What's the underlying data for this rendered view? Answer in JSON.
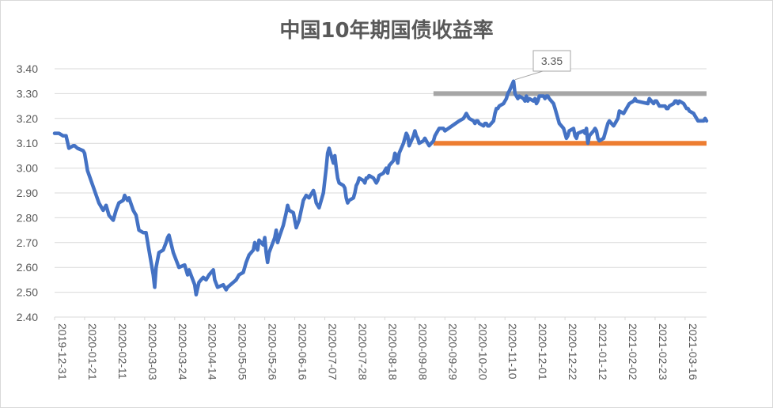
{
  "chart_data": {
    "type": "line",
    "title": "中国10年期国债收益率",
    "xlabel": "",
    "ylabel": "",
    "ylim": [
      2.4,
      3.4
    ],
    "y_ticks": [
      "2.40",
      "2.50",
      "2.60",
      "2.70",
      "2.80",
      "2.90",
      "3.00",
      "3.10",
      "3.20",
      "3.30",
      "3.40"
    ],
    "x_tick_labels": [
      "2019-12-31",
      "2020-01-21",
      "2020-02-11",
      "2020-03-03",
      "2020-03-24",
      "2020-04-14",
      "2020-05-05",
      "2020-05-26",
      "2020-06-16",
      "2020-07-07",
      "2020-07-28",
      "2020-08-18",
      "2020-09-08",
      "2020-09-29",
      "2020-10-20",
      "2020-11-10",
      "2020-12-01",
      "2020-12-22",
      "2021-01-12",
      "2021-02-02",
      "2021-02-23",
      "2021-03-16"
    ],
    "x_range": [
      "2019-12-31",
      "2021-03-31"
    ],
    "grid": true,
    "legend": "none",
    "series": [
      {
        "color": "#4472c4",
        "points": [
          [
            "2019-12-31",
            3.14
          ],
          [
            "2020-01-02",
            3.14
          ],
          [
            "2020-01-03",
            3.14
          ],
          [
            "2020-01-06",
            3.13
          ],
          [
            "2020-01-08",
            3.13
          ],
          [
            "2020-01-10",
            3.08
          ],
          [
            "2020-01-13",
            3.09
          ],
          [
            "2020-01-14",
            3.09
          ],
          [
            "2020-01-16",
            3.08
          ],
          [
            "2020-01-20",
            3.07
          ],
          [
            "2020-01-21",
            3.06
          ],
          [
            "2020-01-23",
            2.99
          ],
          [
            "2020-01-31",
            2.86
          ],
          [
            "2020-02-03",
            2.83
          ],
          [
            "2020-02-05",
            2.85
          ],
          [
            "2020-02-07",
            2.81
          ],
          [
            "2020-02-10",
            2.79
          ],
          [
            "2020-02-12",
            2.83
          ],
          [
            "2020-02-14",
            2.86
          ],
          [
            "2020-02-17",
            2.87
          ],
          [
            "2020-02-18",
            2.89
          ],
          [
            "2020-02-20",
            2.87
          ],
          [
            "2020-02-21",
            2.88
          ],
          [
            "2020-02-24",
            2.83
          ],
          [
            "2020-02-26",
            2.81
          ],
          [
            "2020-02-28",
            2.75
          ],
          [
            "2020-03-02",
            2.74
          ],
          [
            "2020-03-04",
            2.74
          ],
          [
            "2020-03-06",
            2.67
          ],
          [
            "2020-03-09",
            2.57
          ],
          [
            "2020-03-10",
            2.52
          ],
          [
            "2020-03-11",
            2.6
          ],
          [
            "2020-03-13",
            2.66
          ],
          [
            "2020-03-16",
            2.67
          ],
          [
            "2020-03-18",
            2.7
          ],
          [
            "2020-03-19",
            2.72
          ],
          [
            "2020-03-20",
            2.73
          ],
          [
            "2020-03-23",
            2.66
          ],
          [
            "2020-03-25",
            2.63
          ],
          [
            "2020-03-27",
            2.6
          ],
          [
            "2020-03-31",
            2.61
          ],
          [
            "2020-04-02",
            2.57
          ],
          [
            "2020-04-03",
            2.59
          ],
          [
            "2020-04-07",
            2.53
          ],
          [
            "2020-04-08",
            2.49
          ],
          [
            "2020-04-10",
            2.54
          ],
          [
            "2020-04-13",
            2.56
          ],
          [
            "2020-04-15",
            2.55
          ],
          [
            "2020-04-17",
            2.57
          ],
          [
            "2020-04-20",
            2.59
          ],
          [
            "2020-04-21",
            2.55
          ],
          [
            "2020-04-23",
            2.52
          ],
          [
            "2020-04-27",
            2.53
          ],
          [
            "2020-04-29",
            2.51
          ],
          [
            "2020-04-30",
            2.52
          ],
          [
            "2020-05-06",
            2.55
          ],
          [
            "2020-05-08",
            2.57
          ],
          [
            "2020-05-11",
            2.58
          ],
          [
            "2020-05-13",
            2.62
          ],
          [
            "2020-05-15",
            2.65
          ],
          [
            "2020-05-18",
            2.67
          ],
          [
            "2020-05-19",
            2.7
          ],
          [
            "2020-05-21",
            2.67
          ],
          [
            "2020-05-22",
            2.71
          ],
          [
            "2020-05-25",
            2.69
          ],
          [
            "2020-05-26",
            2.72
          ],
          [
            "2020-05-27",
            2.66
          ],
          [
            "2020-05-28",
            2.62
          ],
          [
            "2020-05-29",
            2.66
          ],
          [
            "2020-06-02",
            2.72
          ],
          [
            "2020-06-03",
            2.75
          ],
          [
            "2020-06-04",
            2.7
          ],
          [
            "2020-06-05",
            2.72
          ],
          [
            "2020-06-08",
            2.77
          ],
          [
            "2020-06-10",
            2.82
          ],
          [
            "2020-06-11",
            2.85
          ],
          [
            "2020-06-12",
            2.83
          ],
          [
            "2020-06-15",
            2.82
          ],
          [
            "2020-06-17",
            2.76
          ],
          [
            "2020-06-19",
            2.79
          ],
          [
            "2020-06-22",
            2.87
          ],
          [
            "2020-06-24",
            2.89
          ],
          [
            "2020-06-26",
            2.88
          ],
          [
            "2020-06-29",
            2.91
          ],
          [
            "2020-06-30",
            2.89
          ],
          [
            "2020-07-01",
            2.86
          ],
          [
            "2020-07-02",
            2.85
          ],
          [
            "2020-07-03",
            2.84
          ],
          [
            "2020-07-06",
            2.9
          ],
          [
            "2020-07-07",
            2.95
          ],
          [
            "2020-07-08",
            3.0
          ],
          [
            "2020-07-09",
            3.06
          ],
          [
            "2020-07-10",
            3.08
          ],
          [
            "2020-07-13",
            3.02
          ],
          [
            "2020-07-14",
            3.05
          ],
          [
            "2020-07-15",
            3.0
          ],
          [
            "2020-07-16",
            2.96
          ],
          [
            "2020-07-17",
            2.94
          ],
          [
            "2020-07-20",
            2.93
          ],
          [
            "2020-07-21",
            2.92
          ],
          [
            "2020-07-22",
            2.88
          ],
          [
            "2020-07-23",
            2.86
          ],
          [
            "2020-07-24",
            2.87
          ],
          [
            "2020-07-27",
            2.88
          ],
          [
            "2020-07-28",
            2.9
          ],
          [
            "2020-07-29",
            2.93
          ],
          [
            "2020-07-30",
            2.94
          ],
          [
            "2020-07-31",
            2.96
          ],
          [
            "2020-08-03",
            2.95
          ],
          [
            "2020-08-04",
            2.94
          ],
          [
            "2020-08-05",
            2.96
          ],
          [
            "2020-08-06",
            2.96
          ],
          [
            "2020-08-07",
            2.97
          ],
          [
            "2020-08-10",
            2.96
          ],
          [
            "2020-08-11",
            2.95
          ],
          [
            "2020-08-12",
            2.94
          ],
          [
            "2020-08-13",
            2.95
          ],
          [
            "2020-08-14",
            2.97
          ],
          [
            "2020-08-17",
            2.98
          ],
          [
            "2020-08-18",
            2.99
          ],
          [
            "2020-08-19",
            3.0
          ],
          [
            "2020-08-20",
            2.98
          ],
          [
            "2020-08-21",
            3.01
          ],
          [
            "2020-08-24",
            3.03
          ],
          [
            "2020-08-25",
            3.06
          ],
          [
            "2020-08-26",
            3.05
          ],
          [
            "2020-08-27",
            3.02
          ],
          [
            "2020-08-28",
            3.06
          ],
          [
            "2020-08-31",
            3.1
          ],
          [
            "2020-09-01",
            3.12
          ],
          [
            "2020-09-02",
            3.14
          ],
          [
            "2020-09-03",
            3.13
          ],
          [
            "2020-09-04",
            3.09
          ],
          [
            "2020-09-07",
            3.13
          ],
          [
            "2020-09-08",
            3.15
          ],
          [
            "2020-09-09",
            3.13
          ],
          [
            "2020-09-10",
            3.12
          ],
          [
            "2020-09-11",
            3.1
          ],
          [
            "2020-09-14",
            3.11
          ],
          [
            "2020-09-15",
            3.12
          ],
          [
            "2020-09-16",
            3.11
          ],
          [
            "2020-09-17",
            3.1
          ],
          [
            "2020-09-18",
            3.09
          ],
          [
            "2020-09-21",
            3.11
          ],
          [
            "2020-09-22",
            3.13
          ],
          [
            "2020-09-23",
            3.14
          ],
          [
            "2020-09-24",
            3.15
          ],
          [
            "2020-09-25",
            3.16
          ],
          [
            "2020-09-28",
            3.16
          ],
          [
            "2020-09-29",
            3.15
          ],
          [
            "2020-10-09",
            3.19
          ],
          [
            "2020-10-12",
            3.2
          ],
          [
            "2020-10-13",
            3.21
          ],
          [
            "2020-10-14",
            3.22
          ],
          [
            "2020-10-15",
            3.21
          ],
          [
            "2020-10-16",
            3.2
          ],
          [
            "2020-10-19",
            3.19
          ],
          [
            "2020-10-20",
            3.18
          ],
          [
            "2020-10-21",
            3.19
          ],
          [
            "2020-10-22",
            3.19
          ],
          [
            "2020-10-23",
            3.18
          ],
          [
            "2020-10-26",
            3.17
          ],
          [
            "2020-10-27",
            3.18
          ],
          [
            "2020-10-28",
            3.18
          ],
          [
            "2020-10-29",
            3.17
          ],
          [
            "2020-10-30",
            3.17
          ],
          [
            "2020-11-02",
            3.19
          ],
          [
            "2020-11-03",
            3.22
          ],
          [
            "2020-11-04",
            3.24
          ],
          [
            "2020-11-05",
            3.24
          ],
          [
            "2020-11-06",
            3.25
          ],
          [
            "2020-11-09",
            3.26
          ],
          [
            "2020-11-10",
            3.27
          ],
          [
            "2020-11-11",
            3.28
          ],
          [
            "2020-11-12",
            3.3
          ],
          [
            "2020-11-13",
            3.31
          ],
          [
            "2020-11-16",
            3.35
          ],
          [
            "2020-11-17",
            3.3
          ],
          [
            "2020-11-18",
            3.29
          ],
          [
            "2020-11-19",
            3.28
          ],
          [
            "2020-11-20",
            3.29
          ],
          [
            "2020-11-23",
            3.28
          ],
          [
            "2020-11-24",
            3.27
          ],
          [
            "2020-11-25",
            3.29
          ],
          [
            "2020-11-26",
            3.27
          ],
          [
            "2020-11-27",
            3.28
          ],
          [
            "2020-11-30",
            3.27
          ],
          [
            "2020-12-01",
            3.28
          ],
          [
            "2020-12-02",
            3.26
          ],
          [
            "2020-12-03",
            3.27
          ],
          [
            "2020-12-04",
            3.29
          ],
          [
            "2020-12-07",
            3.29
          ],
          [
            "2020-12-08",
            3.28
          ],
          [
            "2020-12-09",
            3.29
          ],
          [
            "2020-12-10",
            3.29
          ],
          [
            "2020-12-11",
            3.28
          ],
          [
            "2020-12-14",
            3.26
          ],
          [
            "2020-12-15",
            3.24
          ],
          [
            "2020-12-16",
            3.22
          ],
          [
            "2020-12-17",
            3.2
          ],
          [
            "2020-12-18",
            3.18
          ],
          [
            "2020-12-21",
            3.16
          ],
          [
            "2020-12-22",
            3.14
          ],
          [
            "2020-12-23",
            3.12
          ],
          [
            "2020-12-24",
            3.13
          ],
          [
            "2020-12-25",
            3.15
          ],
          [
            "2020-12-28",
            3.16
          ],
          [
            "2020-12-29",
            3.13
          ],
          [
            "2020-12-30",
            3.12
          ],
          [
            "2020-12-31",
            3.14
          ],
          [
            "2021-01-04",
            3.15
          ],
          [
            "2021-01-05",
            3.14
          ],
          [
            "2021-01-06",
            3.16
          ],
          [
            "2021-01-07",
            3.1
          ],
          [
            "2021-01-08",
            3.13
          ],
          [
            "2021-01-11",
            3.15
          ],
          [
            "2021-01-12",
            3.16
          ],
          [
            "2021-01-13",
            3.15
          ],
          [
            "2021-01-14",
            3.12
          ],
          [
            "2021-01-15",
            3.11
          ],
          [
            "2021-01-18",
            3.12
          ],
          [
            "2021-01-19",
            3.14
          ],
          [
            "2021-01-20",
            3.16
          ],
          [
            "2021-01-21",
            3.18
          ],
          [
            "2021-01-22",
            3.19
          ],
          [
            "2021-01-25",
            3.17
          ],
          [
            "2021-01-26",
            3.18
          ],
          [
            "2021-01-27",
            3.19
          ],
          [
            "2021-01-28",
            3.2
          ],
          [
            "2021-01-29",
            3.23
          ],
          [
            "2021-02-01",
            3.22
          ],
          [
            "2021-02-02",
            3.23
          ],
          [
            "2021-02-03",
            3.24
          ],
          [
            "2021-02-04",
            3.25
          ],
          [
            "2021-02-05",
            3.26
          ],
          [
            "2021-02-08",
            3.27
          ],
          [
            "2021-02-09",
            3.28
          ],
          [
            "2021-02-10",
            3.27
          ],
          [
            "2021-02-18",
            3.26
          ],
          [
            "2021-02-19",
            3.28
          ],
          [
            "2021-02-22",
            3.26
          ],
          [
            "2021-02-23",
            3.27
          ],
          [
            "2021-02-24",
            3.27
          ],
          [
            "2021-02-25",
            3.26
          ],
          [
            "2021-02-26",
            3.25
          ],
          [
            "2021-03-01",
            3.25
          ],
          [
            "2021-03-02",
            3.25
          ],
          [
            "2021-03-03",
            3.24
          ],
          [
            "2021-03-04",
            3.24
          ],
          [
            "2021-03-05",
            3.25
          ],
          [
            "2021-03-08",
            3.26
          ],
          [
            "2021-03-09",
            3.27
          ],
          [
            "2021-03-10",
            3.27
          ],
          [
            "2021-03-11",
            3.26
          ],
          [
            "2021-03-12",
            3.27
          ],
          [
            "2021-03-15",
            3.26
          ],
          [
            "2021-03-16",
            3.25
          ],
          [
            "2021-03-17",
            3.24
          ],
          [
            "2021-03-18",
            3.24
          ],
          [
            "2021-03-19",
            3.23
          ],
          [
            "2021-03-22",
            3.22
          ],
          [
            "2021-03-23",
            3.21
          ],
          [
            "2021-03-24",
            3.2
          ],
          [
            "2021-03-25",
            3.19
          ],
          [
            "2021-03-26",
            3.19
          ],
          [
            "2021-03-29",
            3.19
          ],
          [
            "2021-03-30",
            3.2
          ],
          [
            "2021-03-31",
            3.19
          ]
        ]
      }
    ],
    "reference_lines": [
      {
        "y": 3.3,
        "from": "2020-09-21",
        "to": "2021-03-31",
        "color": "#a6a6a6"
      },
      {
        "y": 3.1,
        "from": "2020-09-21",
        "to": "2021-03-31",
        "color": "#ed7d31"
      }
    ],
    "annotations": [
      {
        "text": "3.35",
        "x": "2020-11-16",
        "y": 3.35
      }
    ]
  }
}
